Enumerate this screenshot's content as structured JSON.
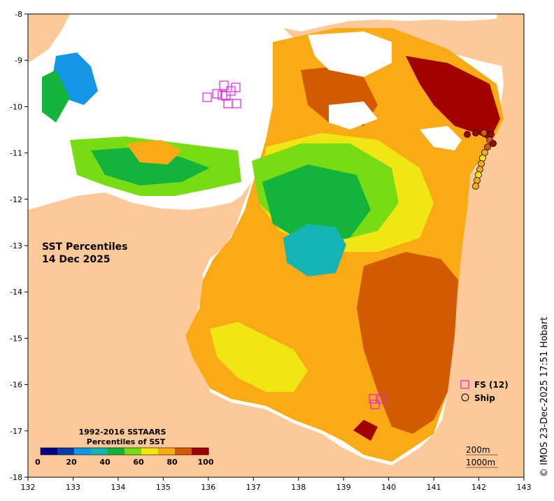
{
  "map": {
    "title_lines": [
      "SST Percentiles",
      "14 Dec 2025"
    ],
    "credit": "© IMOS 23-Dec-2025 17:51 Hobart",
    "lon_ticks": [
      "132",
      "133",
      "134",
      "135",
      "136",
      "137",
      "138",
      "139",
      "140",
      "141",
      "142",
      "143"
    ],
    "lat_ticks": [
      "-8",
      "-9",
      "-10",
      "-11",
      "-12",
      "-13",
      "-14",
      "-15",
      "-16",
      "-17",
      "-18"
    ],
    "land_color": "#fdc998",
    "no_data_color": "#ffffff"
  },
  "legend": {
    "title_line1": "1992-2016 SSTAARS",
    "title_line2": "Percentiles of SST",
    "tick_labels": [
      "0",
      "20",
      "40",
      "60",
      "80",
      "100"
    ],
    "colors": [
      "#00008c",
      "#0a3ca8",
      "#1496e6",
      "#14b4b4",
      "#14b43c",
      "#78dc14",
      "#f0e614",
      "#faaa14",
      "#d25a00",
      "#a00000"
    ]
  },
  "key": {
    "fs_label": "FS (12)",
    "ship_label": "Ship",
    "fs_color": "#e61ee6"
  },
  "contours": {
    "c1": "200m",
    "c2": "1000m"
  },
  "stations": {
    "fs_north": 9,
    "fs_south": 3,
    "ship_points": 14
  }
}
